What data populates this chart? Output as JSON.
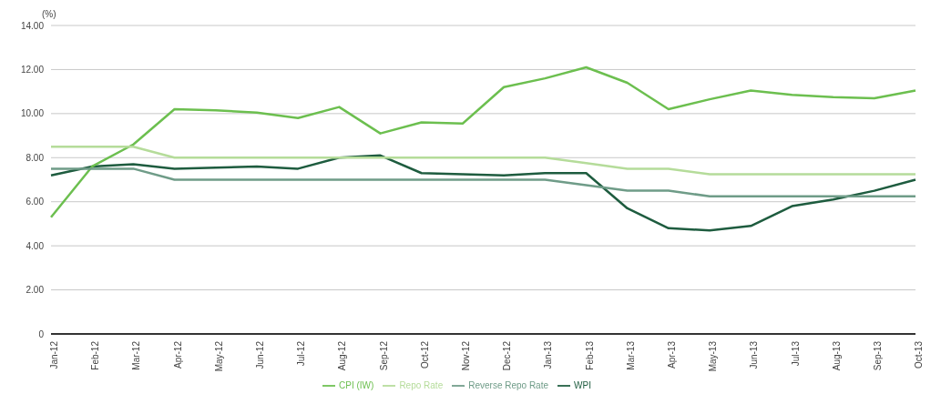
{
  "chart_data": {
    "type": "line",
    "ylabel": "(%)",
    "categories": [
      "Jan-12",
      "Feb-12",
      "Mar-12",
      "Apr-12",
      "May-12",
      "Jun-12",
      "Jul-12",
      "Aug-12",
      "Sep-12",
      "Oct-12",
      "Nov-12",
      "Dec-12",
      "Jan-13",
      "Feb-13",
      "Mar-13",
      "Apr-13",
      "May-13",
      "Jun-13",
      "Jul-13",
      "Aug-13",
      "Sep-13",
      "Oct-13"
    ],
    "series": [
      {
        "name": "WPI",
        "color": "#1e5c3f",
        "values": [
          7.2,
          7.6,
          7.7,
          7.5,
          7.55,
          7.6,
          7.5,
          8.0,
          8.1,
          7.3,
          7.25,
          7.2,
          7.3,
          7.3,
          5.7,
          4.8,
          4.7,
          4.9,
          5.8,
          6.1,
          6.5,
          7.0
        ]
      },
      {
        "name": "CPI (IW)",
        "color": "#6cbf4f",
        "values": [
          5.3,
          7.6,
          8.6,
          10.2,
          10.15,
          10.05,
          9.8,
          10.3,
          9.1,
          9.6,
          9.55,
          11.2,
          11.6,
          12.1,
          11.4,
          10.2,
          10.65,
          11.05,
          10.85,
          10.75,
          10.7,
          11.05
        ]
      },
      {
        "name": "Repo Rate",
        "color": "#b5dc9a",
        "values": [
          8.5,
          8.5,
          8.5,
          8.0,
          8.0,
          8.0,
          8.0,
          8.0,
          8.0,
          8.0,
          8.0,
          8.0,
          8.0,
          7.75,
          7.5,
          7.5,
          7.25,
          7.25,
          7.25,
          7.25,
          7.25,
          7.25
        ]
      },
      {
        "name": "Reverse Repo Rate",
        "color": "#6f9c88",
        "values": [
          7.5,
          7.5,
          7.5,
          7.0,
          7.0,
          7.0,
          7.0,
          7.0,
          7.0,
          7.0,
          7.0,
          7.0,
          7.0,
          6.75,
          6.5,
          6.5,
          6.25,
          6.25,
          6.25,
          6.25,
          6.25,
          6.25
        ]
      }
    ],
    "ylim": [
      0,
      14
    ],
    "yticks": [
      {
        "value": 0,
        "label": "0"
      },
      {
        "value": 2,
        "label": "2.00"
      },
      {
        "value": 4,
        "label": "4.00"
      },
      {
        "value": 6,
        "label": "6.00"
      },
      {
        "value": 8,
        "label": "8.00"
      },
      {
        "value": 10,
        "label": "10.00"
      },
      {
        "value": 12,
        "label": "12.00"
      },
      {
        "value": 14,
        "label": "14.00"
      }
    ],
    "grid": "y",
    "legend": "bottom",
    "marker": "none",
    "line_style": "solid"
  }
}
